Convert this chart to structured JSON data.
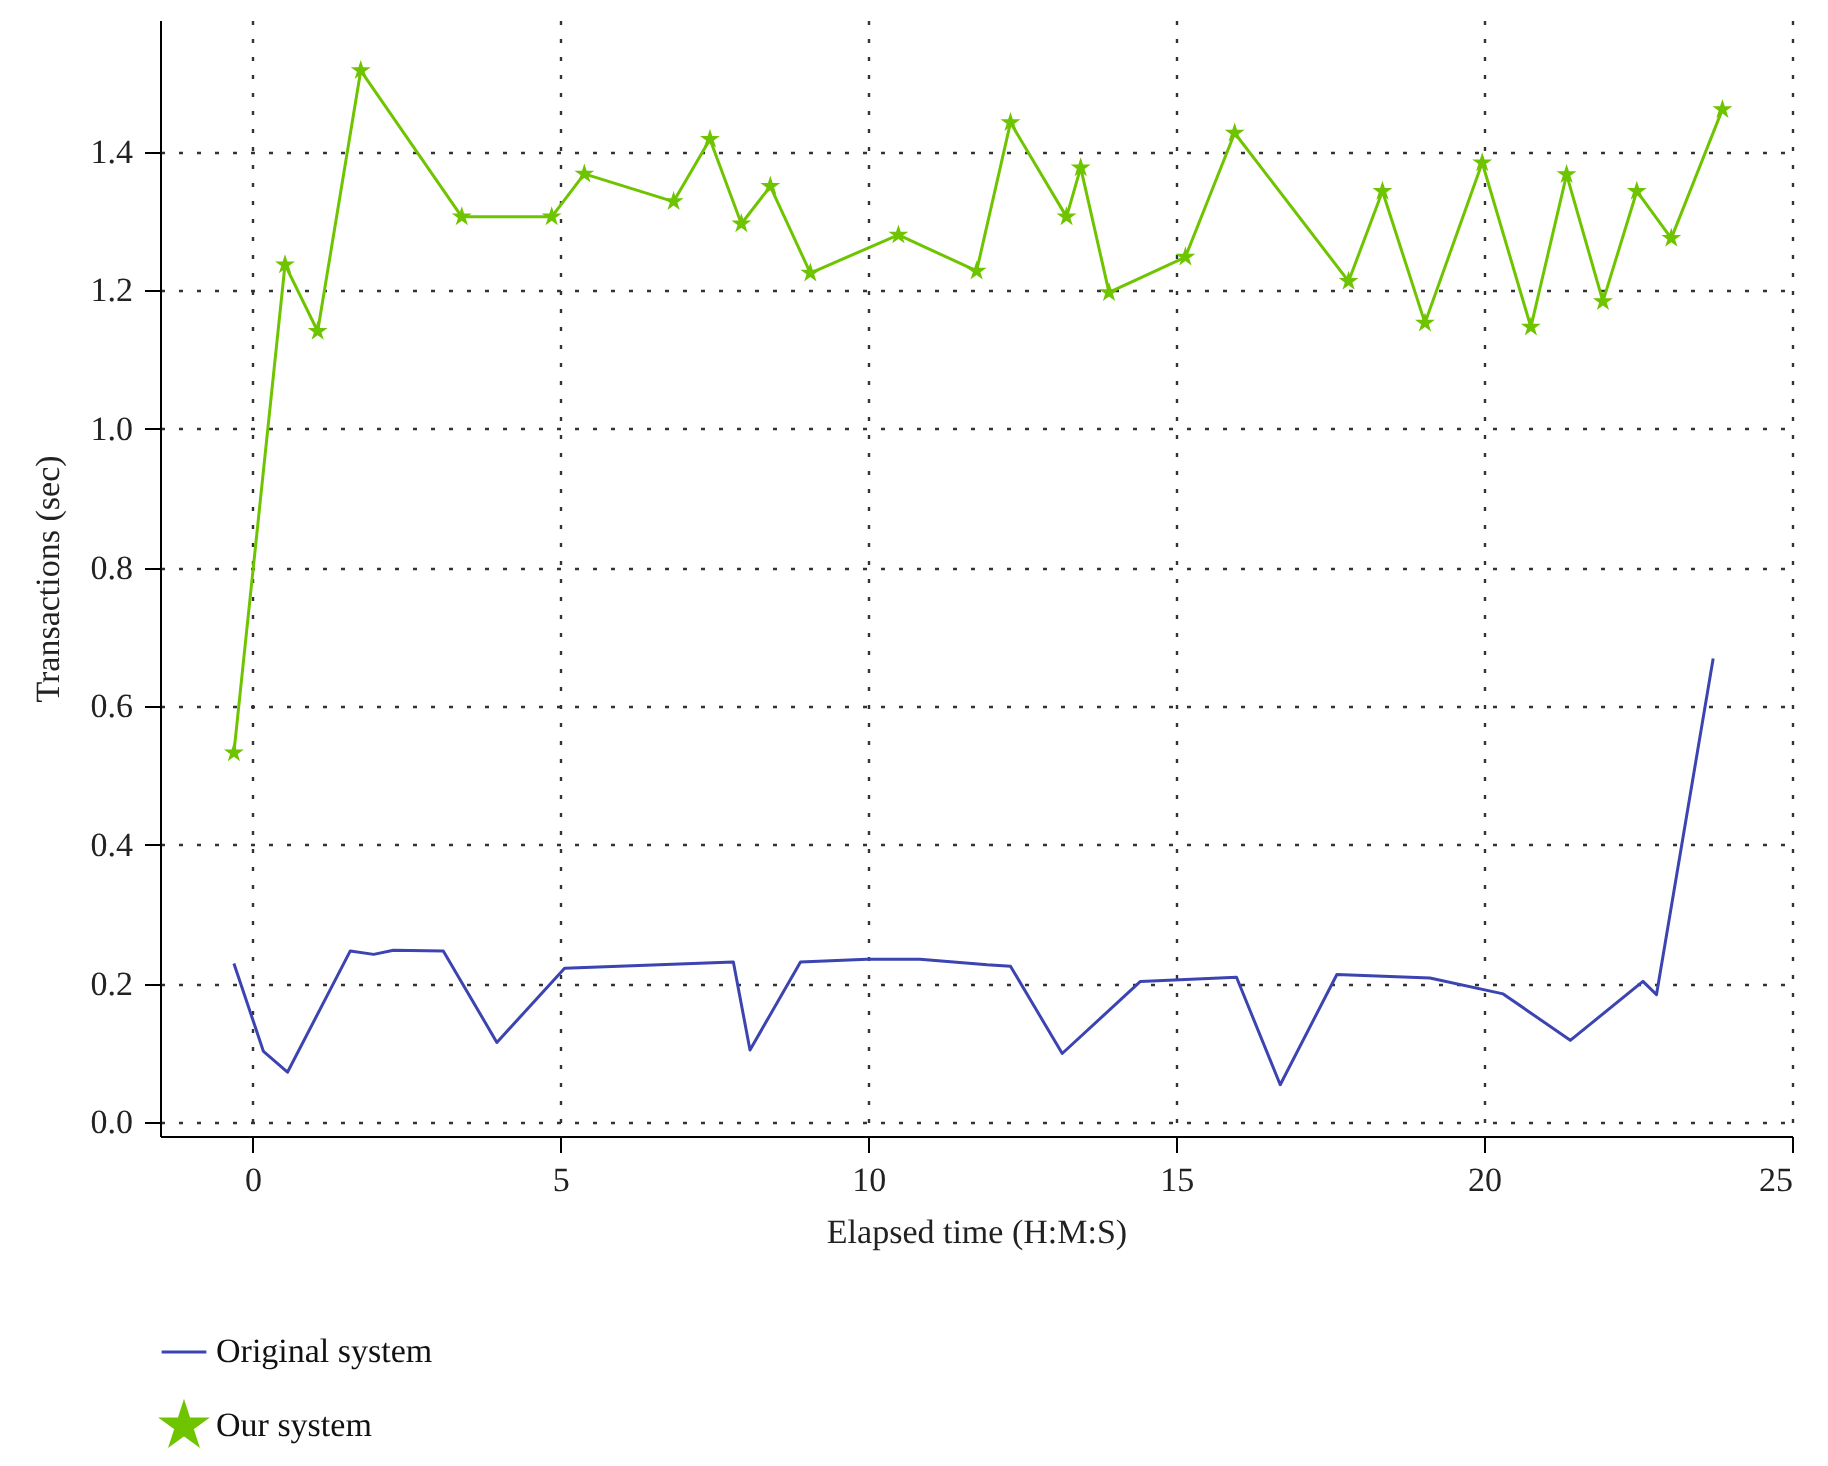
{
  "chart_data": {
    "type": "line",
    "xlabel": "Elapsed time (H:M:S)",
    "ylabel": "Transactions (sec)",
    "xlim": [
      -1.5,
      25
    ],
    "ylim": [
      -0.02,
      1.59
    ],
    "xticks": [
      0,
      5,
      10,
      15,
      20,
      25
    ],
    "yticks": [
      {
        "value": 0,
        "label": "0.0"
      },
      {
        "value": 0.2,
        "label": "0.2"
      },
      {
        "value": 0.4,
        "label": "0.4"
      },
      {
        "value": 0.6,
        "label": "0.6"
      },
      {
        "value": 0.8,
        "label": "0.8"
      },
      {
        "value": 1,
        "label": "1.0"
      },
      {
        "value": 1.2,
        "label": "1.2"
      },
      {
        "value": 1.4,
        "label": "1.4"
      }
    ],
    "grid": true,
    "legend": "bottom",
    "line_style": "solid",
    "series": [
      {
        "name": "Original system",
        "color": "#3b44b0",
        "marker": "none",
        "x": [
          -0.3,
          0.18,
          0.57,
          1.59,
          1.97,
          2.29,
          3.1,
          3.97,
          5.07,
          7.81,
          8.08,
          8.9,
          9.98,
          10.84,
          11.93,
          12.31,
          13.15,
          14.42,
          15.98,
          16.69,
          17.61,
          19.12,
          20.31,
          21.4,
          22.58,
          22.8,
          23.72
        ],
        "values": [
          0.229,
          0.102,
          0.072,
          0.247,
          0.242,
          0.248,
          0.247,
          0.115,
          0.222,
          0.231,
          0.104,
          0.231,
          0.235,
          0.235,
          0.227,
          0.225,
          0.099,
          0.203,
          0.209,
          0.054,
          0.213,
          0.208,
          0.185,
          0.118,
          0.203,
          0.184,
          0.669
        ]
      },
      {
        "name": "Our system",
        "color": "#6fc400",
        "marker": "star",
        "x": [
          -0.3,
          0.53,
          1.06,
          1.76,
          3.4,
          4.86,
          5.39,
          6.84,
          7.43,
          7.94,
          8.41,
          9.06,
          10.49,
          11.76,
          12.31,
          13.22,
          13.45,
          13.91,
          15.15,
          15.95,
          17.8,
          18.35,
          19.04,
          19.97,
          20.76,
          21.34,
          21.93,
          22.48,
          23.04,
          23.87
        ],
        "values": [
          0.533,
          1.237,
          1.141,
          1.517,
          1.306,
          1.306,
          1.368,
          1.328,
          1.418,
          1.296,
          1.35,
          1.225,
          1.28,
          1.228,
          1.442,
          1.306,
          1.377,
          1.197,
          1.248,
          1.427,
          1.213,
          1.343,
          1.153,
          1.384,
          1.147,
          1.367,
          1.184,
          1.343,
          1.275,
          1.461
        ]
      }
    ]
  }
}
